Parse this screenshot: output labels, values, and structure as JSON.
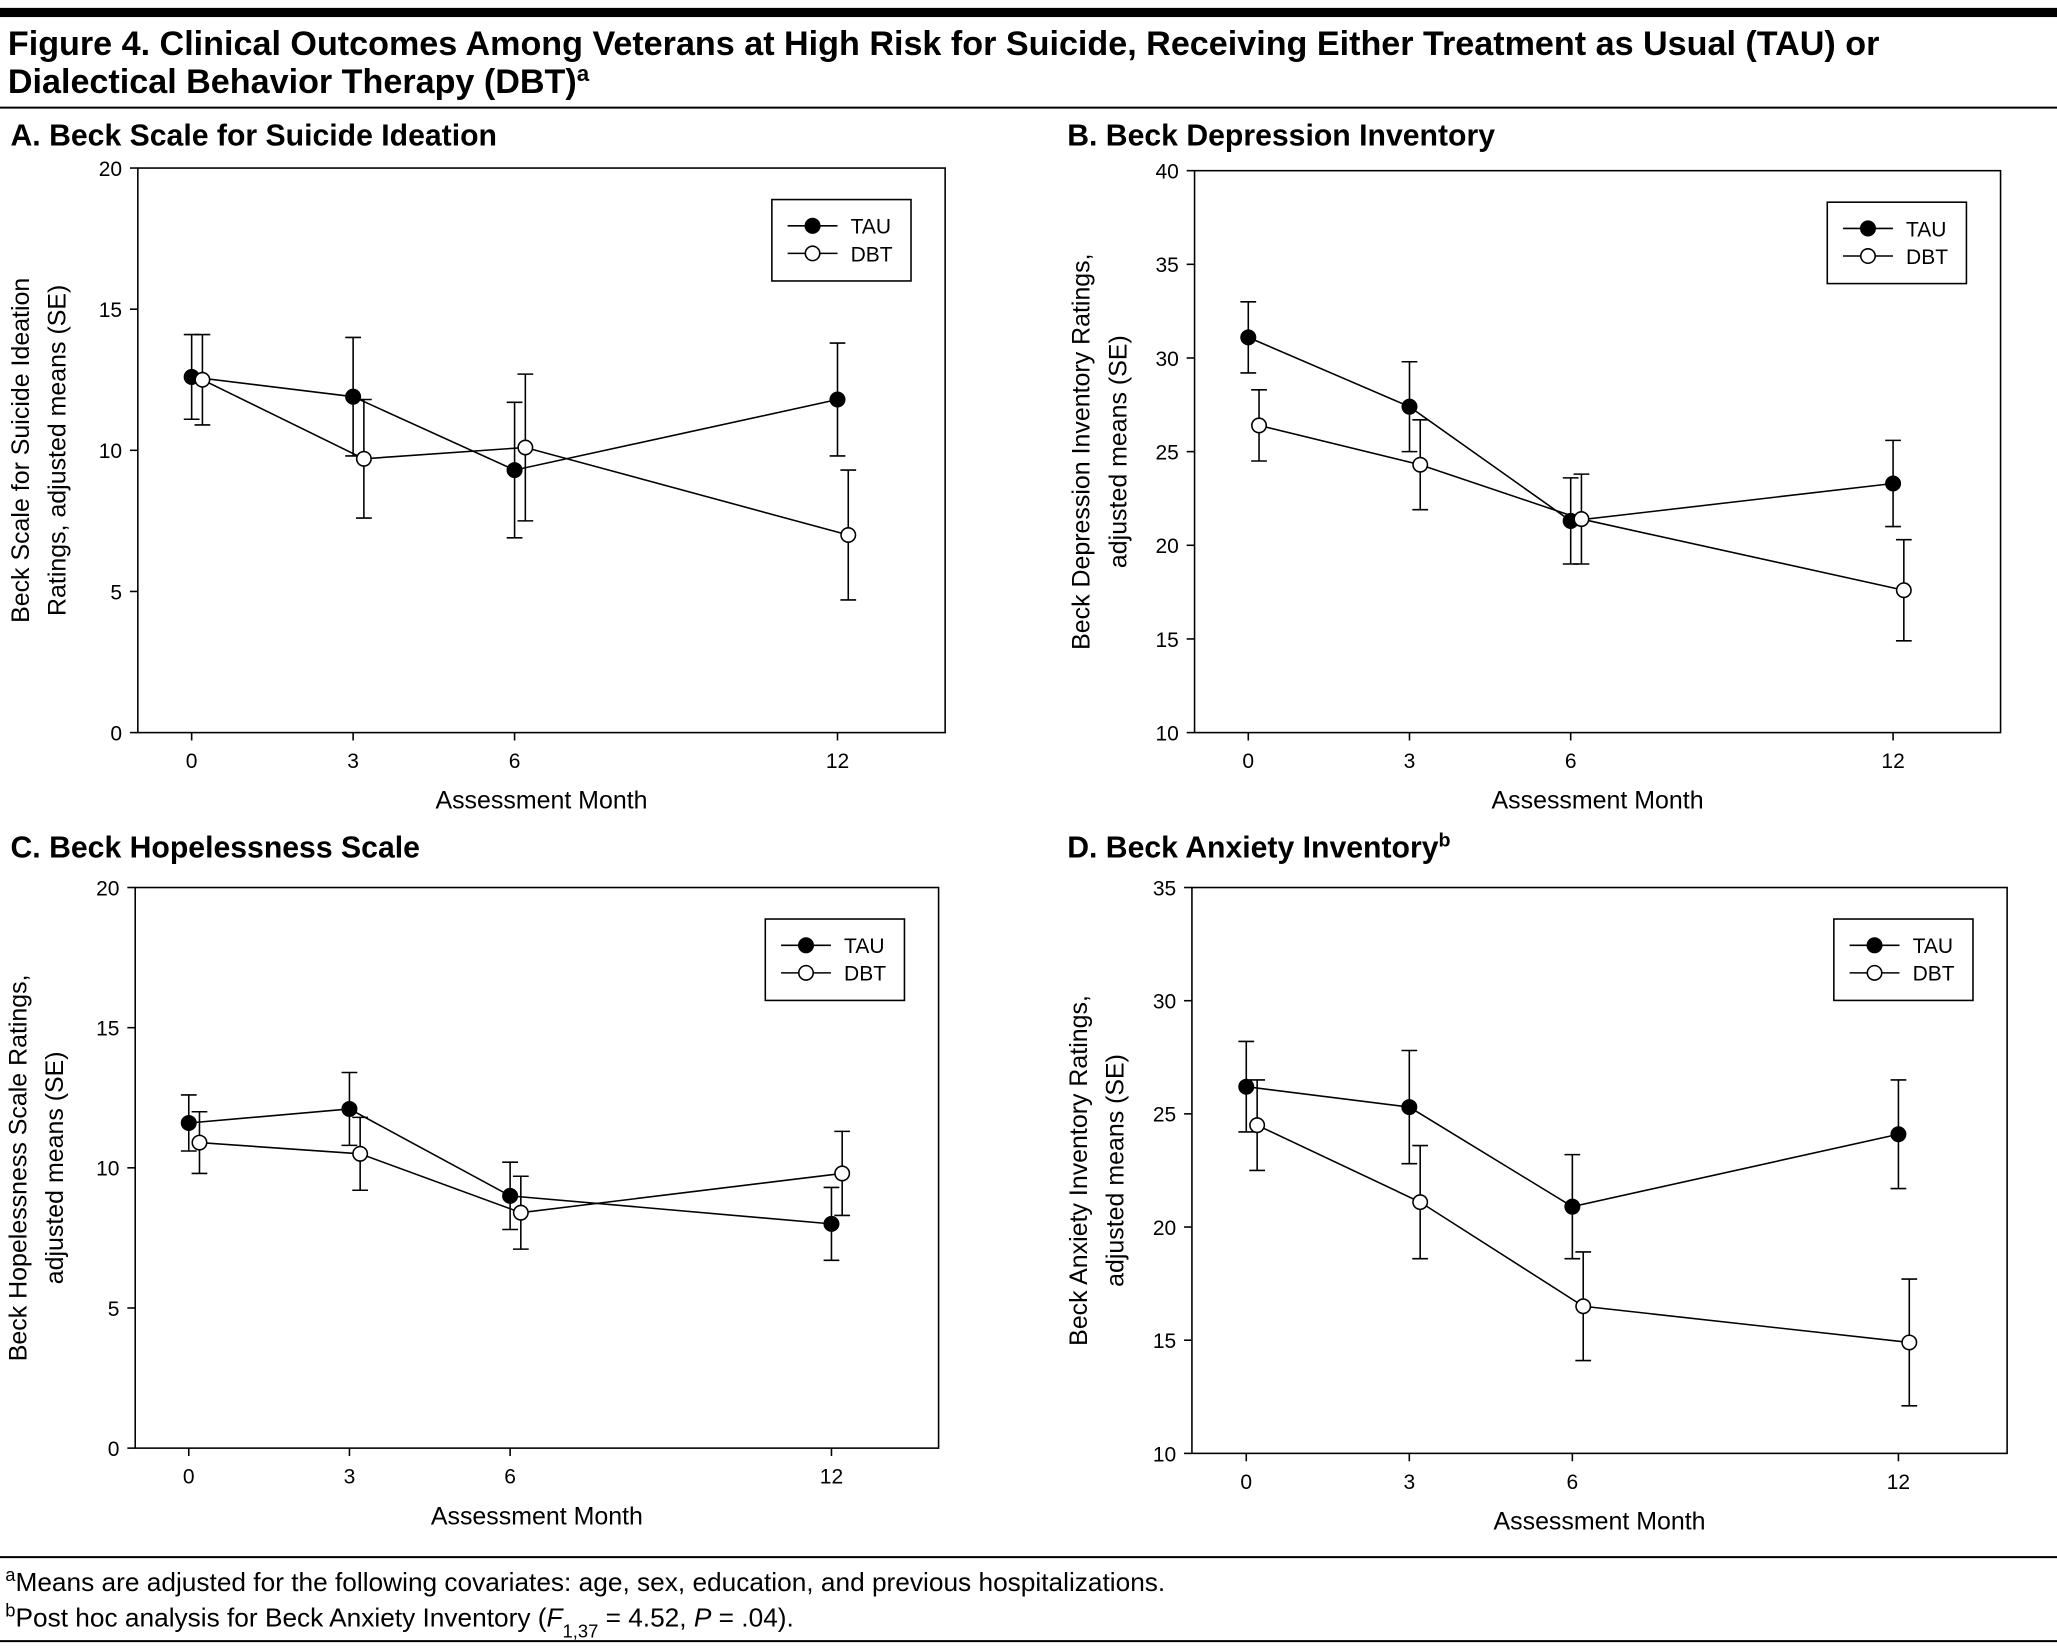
{
  "title_lines": [
    "Figure 4. Clinical Outcomes Among Veterans at High Risk for Suicide, Receiving Either Treatment as Usual (TAU) or",
    "Dialectical Behavior Therapy (DBT)"
  ],
  "title_sup": "a",
  "footnotes": [
    {
      "mark": "a",
      "parts": [
        {
          "text": "Means are adjusted for the following covariates: age, sex, education, and previous hospitalizations."
        }
      ]
    },
    {
      "mark": "b",
      "parts": [
        {
          "text": "Post hoc analysis for Beck Anxiety Inventory ("
        },
        {
          "text": "F",
          "style": "italic"
        },
        {
          "text": "1,37",
          "style": "sub"
        },
        {
          "text": " = 4.52, "
        },
        {
          "text": "P",
          "style": "italic"
        },
        {
          "text": " = .04)."
        }
      ]
    }
  ],
  "chart_data": [
    {
      "type": "line",
      "title": "A. Beck Scale for Suicide Ideation",
      "x_label": "Assessment Month",
      "y_label": [
        "Beck Scale for Suicide Ideation",
        "Ratings, adjusted means (SE)"
      ],
      "xlim": [
        -1,
        14
      ],
      "xticks": [
        0,
        3,
        6,
        12
      ],
      "ylim": [
        0,
        20
      ],
      "yticks": [
        0,
        5,
        10,
        15,
        20
      ],
      "legend": "upper right",
      "series": [
        {
          "name": "TAU",
          "color": "#000000",
          "x": [
            0,
            3,
            6,
            12
          ],
          "values": [
            12.6,
            11.9,
            9.3,
            11.8
          ],
          "errors": [
            1.5,
            2.1,
            2.4,
            2.0
          ]
        },
        {
          "name": "DBT",
          "color": "#ffffff",
          "x": [
            0.2,
            3.2,
            6.2,
            12.2
          ],
          "values": [
            12.5,
            9.7,
            10.1,
            7.0
          ],
          "errors": [
            1.6,
            2.1,
            2.6,
            2.3
          ]
        }
      ]
    },
    {
      "type": "line",
      "title": "B. Beck Depression Inventory",
      "x_label": "Assessment Month",
      "y_label": [
        "Beck Depression Inventory Ratings,",
        "adjusted means (SE)"
      ],
      "xlim": [
        -1,
        14
      ],
      "xticks": [
        0,
        3,
        6,
        12
      ],
      "ylim": [
        10,
        40
      ],
      "yticks": [
        10,
        15,
        20,
        25,
        30,
        35,
        40
      ],
      "legend": "upper right",
      "series": [
        {
          "name": "TAU",
          "color": "#000000",
          "x": [
            0,
            3,
            6,
            12
          ],
          "values": [
            31.1,
            27.4,
            21.3,
            23.3
          ],
          "errors": [
            1.9,
            2.4,
            2.3,
            2.3
          ]
        },
        {
          "name": "DBT",
          "color": "#ffffff",
          "x": [
            0.2,
            3.2,
            6.2,
            12.2
          ],
          "values": [
            26.4,
            24.3,
            21.4,
            17.6
          ],
          "errors": [
            1.9,
            2.4,
            2.4,
            2.7
          ]
        }
      ]
    },
    {
      "type": "line",
      "title": "C. Beck Hopelessness Scale",
      "x_label": "Assessment Month",
      "y_label": [
        "Beck Hopelessness Scale Ratings,",
        "adjusted means (SE)"
      ],
      "xlim": [
        -1,
        14
      ],
      "xticks": [
        0,
        3,
        6,
        12
      ],
      "ylim": [
        0,
        20
      ],
      "yticks": [
        0,
        5,
        10,
        15,
        20
      ],
      "legend": "upper right",
      "series": [
        {
          "name": "TAU",
          "color": "#000000",
          "x": [
            0,
            3,
            6,
            12
          ],
          "values": [
            11.6,
            12.1,
            9.0,
            8.0
          ],
          "errors": [
            1.0,
            1.3,
            1.2,
            1.3
          ]
        },
        {
          "name": "DBT",
          "color": "#ffffff",
          "x": [
            0.2,
            3.2,
            6.2,
            12.2
          ],
          "values": [
            10.9,
            10.5,
            8.4,
            9.8
          ],
          "errors": [
            1.1,
            1.3,
            1.3,
            1.5
          ]
        }
      ]
    },
    {
      "type": "line",
      "title": "D. Beck Anxiety Inventory",
      "title_sup": "b",
      "x_label": "Assessment Month",
      "y_label": [
        "Beck Anxiety Inventory Ratings,",
        "adjusted means (SE)"
      ],
      "xlim": [
        -1,
        14
      ],
      "xticks": [
        0,
        3,
        6,
        12
      ],
      "ylim": [
        10,
        35
      ],
      "yticks": [
        10,
        15,
        20,
        25,
        30,
        35
      ],
      "legend": "upper right",
      "series": [
        {
          "name": "TAU",
          "color": "#000000",
          "x": [
            0,
            3,
            6,
            12
          ],
          "values": [
            26.2,
            25.3,
            20.9,
            24.1
          ],
          "errors": [
            2.0,
            2.5,
            2.3,
            2.4
          ]
        },
        {
          "name": "DBT",
          "color": "#ffffff",
          "x": [
            0.2,
            3.2,
            6.2,
            12.2
          ],
          "values": [
            24.5,
            21.1,
            16.5,
            14.9
          ],
          "errors": [
            2.0,
            2.5,
            2.4,
            2.8
          ]
        }
      ]
    }
  ]
}
